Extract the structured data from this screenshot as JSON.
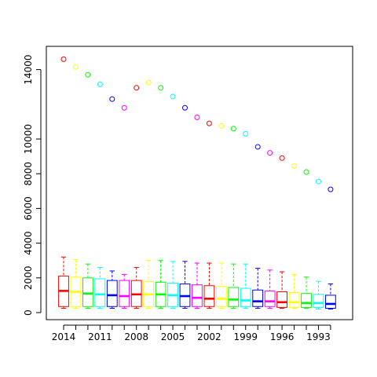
{
  "chart_data": {
    "type": "boxplot",
    "title": "",
    "xlabel": "",
    "ylabel": "",
    "ylim": [
      0,
      14600
    ],
    "y_ticks": [
      0,
      2000,
      4000,
      6000,
      8000,
      10000,
      14000
    ],
    "x_tick_labels": [
      "2014",
      "2011",
      "2008",
      "2005",
      "2002",
      "1999",
      "1996",
      "1993"
    ],
    "x_tick_positions": [
      1,
      4,
      7,
      10,
      13,
      16,
      19,
      22
    ],
    "grid": false,
    "legend": "none",
    "palette": [
      "#ff0000",
      "#ffff00",
      "#00ff00",
      "#00ffff",
      "#0000ff",
      "#ff00ff"
    ],
    "boxes": [
      {
        "year": 2014,
        "whisker_low": 250,
        "q1": 350,
        "median": 1250,
        "q3": 2100,
        "whisker_high": 3200,
        "outlier": 14600
      },
      {
        "year": 2013,
        "whisker_low": 250,
        "q1": 350,
        "median": 1200,
        "q3": 2050,
        "whisker_high": 3050,
        "outlier": 14150
      },
      {
        "year": 2012,
        "whisker_low": 250,
        "q1": 350,
        "median": 1100,
        "q3": 2000,
        "whisker_high": 2800,
        "outlier": 13700
      },
      {
        "year": 2011,
        "whisker_low": 250,
        "q1": 350,
        "median": 1050,
        "q3": 1950,
        "whisker_high": 2600,
        "outlier": 13150
      },
      {
        "year": 2010,
        "whisker_low": 250,
        "q1": 350,
        "median": 1000,
        "q3": 1850,
        "whisker_high": 2400,
        "outlier": 12300
      },
      {
        "year": 2009,
        "whisker_low": 250,
        "q1": 350,
        "median": 950,
        "q3": 1850,
        "whisker_high": 2200,
        "outlier": 11800
      },
      {
        "year": 2008,
        "whisker_low": 250,
        "q1": 350,
        "median": 1050,
        "q3": 1850,
        "whisker_high": 2600,
        "outlier": 12950
      },
      {
        "year": 2007,
        "whisker_low": 250,
        "q1": 350,
        "median": 1050,
        "q3": 1800,
        "whisker_high": 3000,
        "outlier": 13250
      },
      {
        "year": 2006,
        "whisker_low": 250,
        "q1": 350,
        "median": 1050,
        "q3": 1750,
        "whisker_high": 3000,
        "outlier": 12950
      },
      {
        "year": 2005,
        "whisker_low": 250,
        "q1": 350,
        "median": 1000,
        "q3": 1700,
        "whisker_high": 2950,
        "outlier": 12450
      },
      {
        "year": 2004,
        "whisker_low": 250,
        "q1": 350,
        "median": 950,
        "q3": 1650,
        "whisker_high": 2950,
        "outlier": 11800
      },
      {
        "year": 2003,
        "whisker_low": 250,
        "q1": 350,
        "median": 850,
        "q3": 1600,
        "whisker_high": 2850,
        "outlier": 11250
      },
      {
        "year": 2002,
        "whisker_low": 250,
        "q1": 350,
        "median": 800,
        "q3": 1550,
        "whisker_high": 2850,
        "outlier": 10900
      },
      {
        "year": 2001,
        "whisker_low": 250,
        "q1": 350,
        "median": 800,
        "q3": 1500,
        "whisker_high": 2850,
        "outlier": 10750
      },
      {
        "year": 2000,
        "whisker_low": 250,
        "q1": 350,
        "median": 750,
        "q3": 1450,
        "whisker_high": 2800,
        "outlier": 10600
      },
      {
        "year": 1999,
        "whisker_low": 250,
        "q1": 350,
        "median": 700,
        "q3": 1400,
        "whisker_high": 2800,
        "outlier": 10300
      },
      {
        "year": 1998,
        "whisker_low": 250,
        "q1": 350,
        "median": 650,
        "q3": 1300,
        "whisker_high": 2550,
        "outlier": 9550
      },
      {
        "year": 1997,
        "whisker_low": 250,
        "q1": 350,
        "median": 650,
        "q3": 1250,
        "whisker_high": 2450,
        "outlier": 9200
      },
      {
        "year": 1996,
        "whisker_low": 250,
        "q1": 300,
        "median": 600,
        "q3": 1200,
        "whisker_high": 2350,
        "outlier": 8900
      },
      {
        "year": 1995,
        "whisker_low": 250,
        "q1": 300,
        "median": 600,
        "q3": 1150,
        "whisker_high": 2200,
        "outlier": 8450
      },
      {
        "year": 1994,
        "whisker_low": 250,
        "q1": 300,
        "median": 550,
        "q3": 1100,
        "whisker_high": 2050,
        "outlier": 8100
      },
      {
        "year": 1993,
        "whisker_low": 200,
        "q1": 300,
        "median": 550,
        "q3": 1050,
        "whisker_high": 1800,
        "outlier": 7550
      },
      {
        "year": 1992,
        "whisker_low": 200,
        "q1": 250,
        "median": 500,
        "q3": 1000,
        "whisker_high": 1650,
        "outlier": 7100
      }
    ]
  }
}
